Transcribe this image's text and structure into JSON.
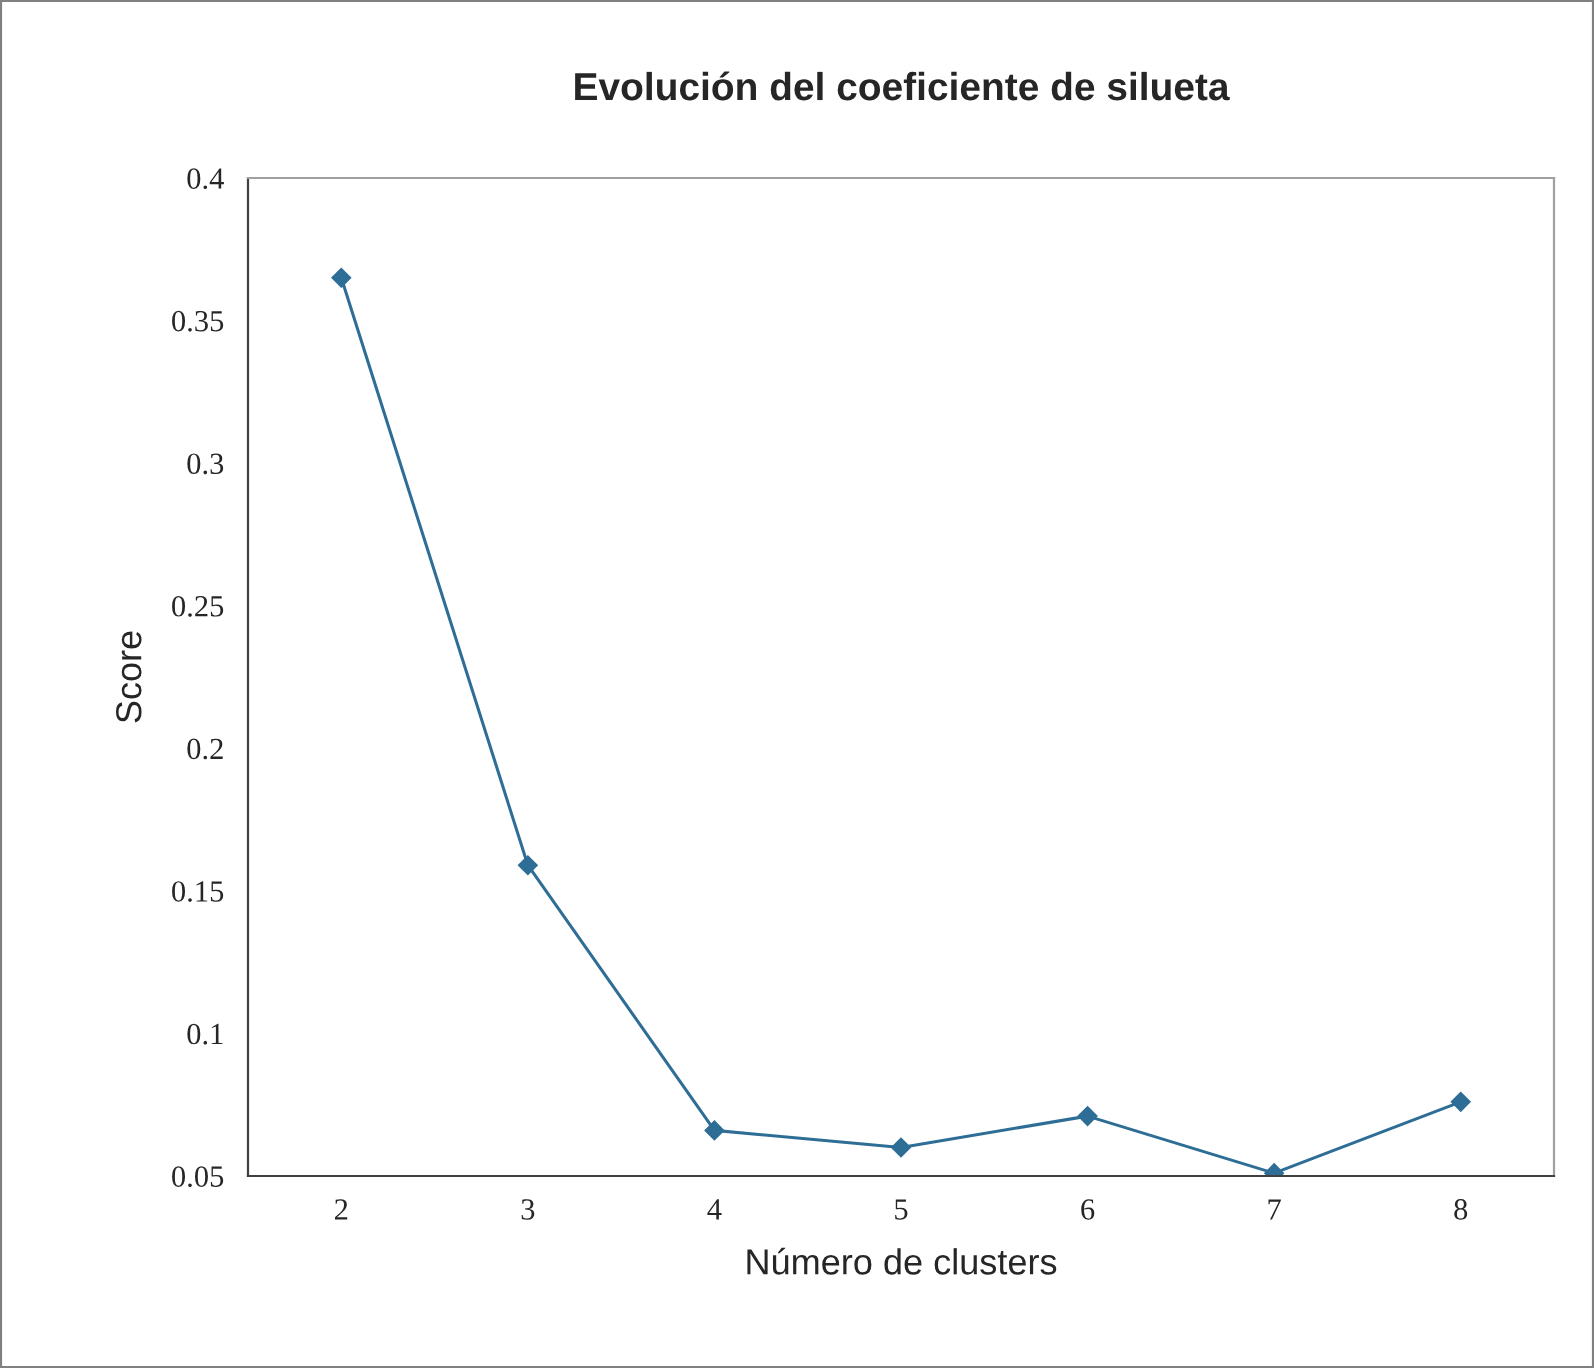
{
  "chart_data": {
    "type": "line",
    "title": "Evolución del coeficiente de silueta",
    "xlabel": "Número de clusters",
    "ylabel": "Score",
    "categories": [
      "2",
      "3",
      "4",
      "5",
      "6",
      "7",
      "8"
    ],
    "series": [
      {
        "color": "#2e6e96",
        "values": [
          0.365,
          0.159,
          0.066,
          0.06,
          0.071,
          0.051,
          0.076
        ]
      }
    ],
    "ylim": [
      0.05,
      0.4
    ],
    "yticks": [
      0.05,
      0.1,
      0.15,
      0.2,
      0.25,
      0.3,
      0.35,
      0.4
    ],
    "marker": "diamond",
    "line_style": "solid"
  }
}
